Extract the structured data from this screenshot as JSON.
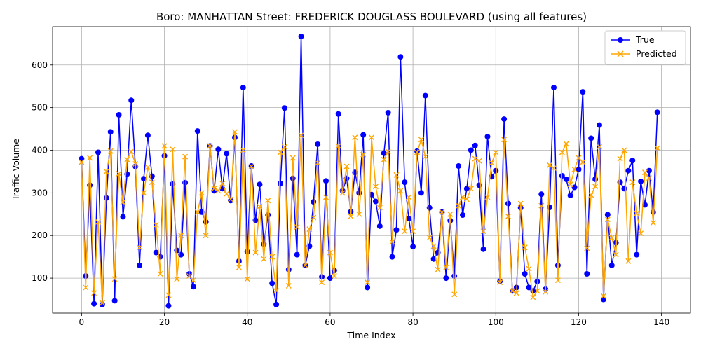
{
  "chart_data": {
    "type": "line",
    "title": "Boro: MANHATTAN Street: FREDERICK DOUGLASS BOULEVARD (using all features)",
    "xlabel": "Time Index",
    "ylabel": "Traffic Volume",
    "xlim": [
      -7,
      147
    ],
    "ylim": [
      18,
      690
    ],
    "xticks": [
      0,
      20,
      40,
      60,
      80,
      100,
      120,
      140
    ],
    "yticks": [
      100,
      200,
      300,
      400,
      500,
      600
    ],
    "grid": true,
    "legend_position": "top-right",
    "series": [
      {
        "name": "True",
        "color": "#0000ff",
        "marker": "circle",
        "values": [
          380,
          105,
          318,
          40,
          395,
          38,
          288,
          443,
          47,
          483,
          244,
          344,
          517,
          362,
          130,
          333,
          435,
          339,
          160,
          150,
          387,
          35,
          321,
          165,
          155,
          324,
          110,
          80,
          445,
          255,
          232,
          410,
          305,
          402,
          310,
          392,
          282,
          430,
          140,
          547,
          162,
          363,
          236,
          320,
          180,
          248,
          88,
          38,
          322,
          499,
          120,
          334,
          155,
          667,
          130,
          175,
          279,
          414,
          103,
          328,
          100,
          118,
          485,
          305,
          334,
          256,
          348,
          300,
          436,
          78,
          296,
          280,
          222,
          393,
          488,
          150,
          213,
          619,
          325,
          240,
          174,
          398,
          300,
          528,
          265,
          145,
          160,
          255,
          100,
          235,
          105,
          363,
          248,
          310,
          400,
          411,
          318,
          168,
          432,
          338,
          352,
          93,
          473,
          275,
          70,
          78,
          265,
          110,
          78,
          70,
          92,
          297,
          74,
          266,
          547,
          130,
          340,
          332,
          294,
          313,
          355,
          537,
          110,
          428,
          332,
          459,
          50,
          249,
          130,
          183,
          325,
          310,
          352,
          376,
          155,
          327,
          272,
          352,
          255,
          489
        ]
      },
      {
        "name": "Predicted",
        "color": "#ffa500",
        "marker": "x",
        "values": [
          372,
          78,
          382,
          65,
          232,
          42,
          350,
          398,
          98,
          345,
          278,
          378,
          397,
          368,
          172,
          300,
          360,
          325,
          225,
          110,
          410,
          60,
          402,
          98,
          200,
          385,
          105,
          95,
          255,
          300,
          200,
          410,
          310,
          305,
          322,
          298,
          285,
          443,
          125,
          400,
          98,
          362,
          160,
          268,
          145,
          282,
          150,
          70,
          395,
          408,
          82,
          382,
          220,
          435,
          130,
          215,
          242,
          370,
          90,
          290,
          160,
          105,
          410,
          300,
          362,
          245,
          430,
          250,
          390,
          90,
          430,
          315,
          265,
          378,
          397,
          185,
          342,
          305,
          210,
          290,
          210,
          395,
          425,
          385,
          195,
          175,
          120,
          255,
          125,
          250,
          62,
          270,
          290,
          285,
          310,
          380,
          375,
          210,
          290,
          370,
          395,
          90,
          425,
          245,
          70,
          65,
          275,
          172,
          122,
          55,
          70,
          270,
          68,
          365,
          358,
          95,
          395,
          415,
          320,
          355,
          382,
          372,
          170,
          295,
          315,
          408,
          58,
          238,
          195,
          155,
          380,
          400,
          140,
          325,
          252,
          205,
          348,
          335,
          230,
          405
        ]
      }
    ]
  }
}
